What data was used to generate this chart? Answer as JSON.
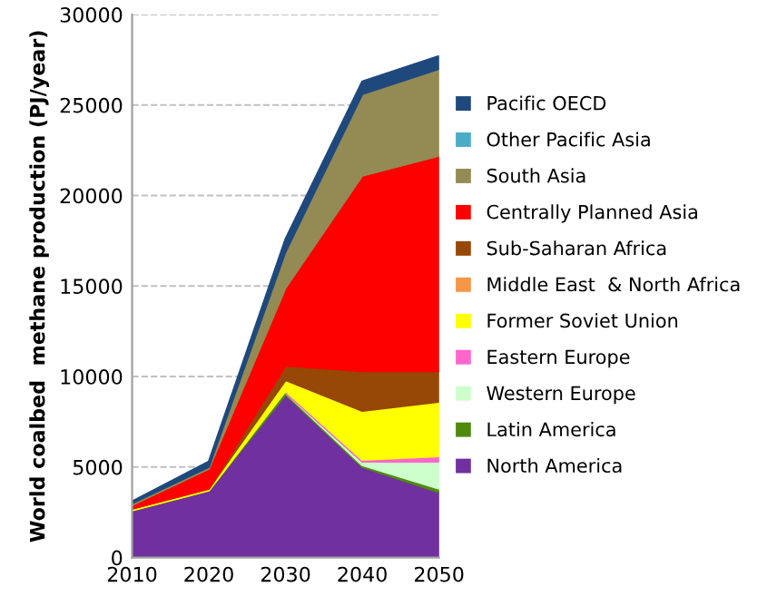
{
  "chart_data": {
    "type": "area",
    "stacked": true,
    "ylabel": "World coalbed  methane production (PJ/year)",
    "x": [
      2010,
      2020,
      2030,
      2040,
      2050
    ],
    "xlim": [
      2010,
      2050
    ],
    "xticks": [
      2010,
      2020,
      2030,
      2040,
      2050
    ],
    "ylim": [
      0,
      30000
    ],
    "yticks": [
      0,
      5000,
      10000,
      15000,
      20000,
      25000,
      30000
    ],
    "grid": "y",
    "legend": "right",
    "series": [
      {
        "name": "North America",
        "color": "#7030a0",
        "values": [
          2600,
          3700,
          9000,
          5000,
          3600
        ]
      },
      {
        "name": "Latin America",
        "color": "#4e8a0e",
        "values": [
          0,
          0,
          100,
          100,
          200
        ]
      },
      {
        "name": "Western Europe",
        "color": "#ccffcc",
        "values": [
          null,
          null,
          0,
          200,
          1500
        ]
      },
      {
        "name": "Eastern Europe",
        "color": "#ff66cc",
        "values": [
          null,
          null,
          100,
          100,
          300
        ]
      },
      {
        "name": "Former Soviet Union",
        "color": "#ffff00",
        "values": [
          100,
          100,
          600,
          2700,
          3000
        ]
      },
      {
        "name": "Middle East  & North Africa",
        "color": "#f79646",
        "values": [
          null,
          null,
          null,
          null,
          null
        ]
      },
      {
        "name": "Sub-Saharan Africa",
        "color": "#974706",
        "values": [
          0,
          0,
          800,
          2200,
          1700
        ]
      },
      {
        "name": "Centrally Planned Asia",
        "color": "#ff0000",
        "values": [
          200,
          1100,
          4300,
          10800,
          11900
        ]
      },
      {
        "name": "South Asia",
        "color": "#948a54",
        "values": [
          100,
          100,
          2000,
          4500,
          4800
        ]
      },
      {
        "name": "Other Pacific Asia",
        "color": "#4bacc6",
        "values": [
          null,
          null,
          null,
          null,
          null
        ]
      },
      {
        "name": "Pacific OECD",
        "color": "#1f497d",
        "values": [
          100,
          300,
          700,
          700,
          700
        ]
      }
    ]
  }
}
